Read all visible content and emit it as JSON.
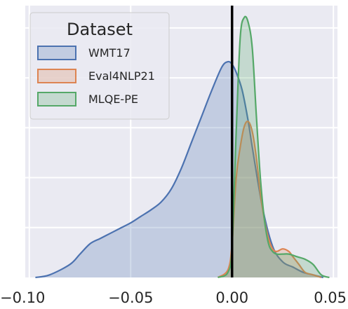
{
  "chart_data": {
    "type": "area",
    "title": "",
    "xlabel": "",
    "ylabel": "",
    "xlim": [
      -0.102,
      0.052
    ],
    "ylim": [
      0,
      1.0
    ],
    "xticks": [
      "−0.10",
      "−0.05",
      "0.00",
      "0.05"
    ],
    "xtick_values": [
      -0.1,
      -0.05,
      0.0,
      0.05
    ],
    "grid": true,
    "vline_x": 0.0,
    "legend": {
      "title": "Dataset",
      "placement": "top-left"
    },
    "series": [
      {
        "name": "WMT17",
        "color": "#4c72b0",
        "x": [
          -0.097,
          -0.09,
          -0.08,
          -0.075,
          -0.07,
          -0.065,
          -0.06,
          -0.055,
          -0.05,
          -0.045,
          -0.04,
          -0.035,
          -0.03,
          -0.025,
          -0.02,
          -0.015,
          -0.01,
          -0.005,
          -0.002,
          0.0,
          0.002,
          0.005,
          0.008,
          0.01,
          0.015,
          0.02,
          0.025,
          0.03,
          0.035,
          0.04,
          0.045
        ],
        "y": [
          0.0,
          0.01,
          0.05,
          0.09,
          0.13,
          0.15,
          0.17,
          0.19,
          0.21,
          0.235,
          0.26,
          0.29,
          0.34,
          0.42,
          0.52,
          0.62,
          0.72,
          0.81,
          0.83,
          0.82,
          0.79,
          0.72,
          0.6,
          0.5,
          0.27,
          0.12,
          0.06,
          0.04,
          0.02,
          0.01,
          0.0
        ]
      },
      {
        "name": "Eval4NLP21",
        "color": "#dd8452",
        "x": [
          -0.007,
          -0.002,
          0.0,
          0.002,
          0.004,
          0.006,
          0.008,
          0.01,
          0.012,
          0.014,
          0.016,
          0.018,
          0.02,
          0.022,
          0.025,
          0.028,
          0.03,
          0.033,
          0.036,
          0.04,
          0.044
        ],
        "y": [
          0.0,
          0.03,
          0.13,
          0.38,
          0.5,
          0.58,
          0.6,
          0.56,
          0.46,
          0.32,
          0.22,
          0.15,
          0.11,
          0.1,
          0.11,
          0.1,
          0.08,
          0.05,
          0.02,
          0.01,
          0.0
        ]
      },
      {
        "name": "MLQE-PE",
        "color": "#55a868",
        "x": [
          -0.007,
          -0.002,
          0.0,
          0.002,
          0.004,
          0.006,
          0.008,
          0.01,
          0.012,
          0.014,
          0.016,
          0.018,
          0.02,
          0.022,
          0.025,
          0.028,
          0.032,
          0.036,
          0.04,
          0.044,
          0.048
        ],
        "y": [
          0.0,
          0.02,
          0.12,
          0.55,
          0.92,
          1.0,
          0.98,
          0.88,
          0.62,
          0.38,
          0.22,
          0.13,
          0.1,
          0.09,
          0.09,
          0.09,
          0.08,
          0.07,
          0.05,
          0.01,
          0.0
        ]
      }
    ]
  }
}
